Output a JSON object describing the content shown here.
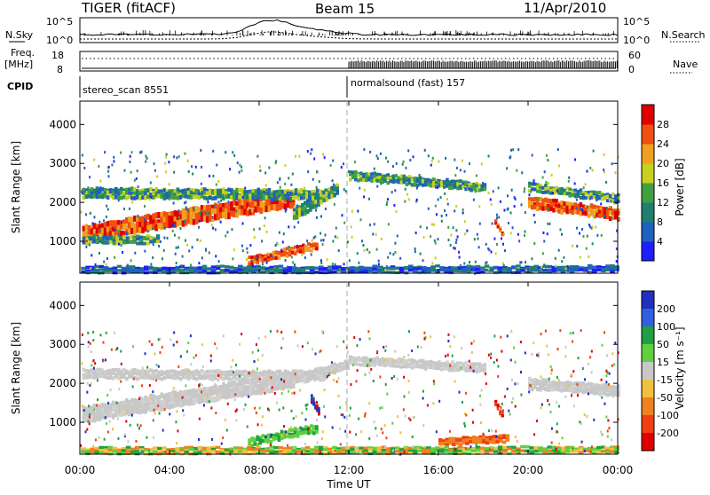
{
  "header": {
    "radar": "TIGER (fitACF)",
    "beam": "Beam 15",
    "date": "11/Apr/2010"
  },
  "top_panels": {
    "nsky_label": "N.Sky",
    "nsearch_label": "N.Search",
    "freq_label_top": "Freq.",
    "freq_label_unit": "[MHz]",
    "nave_label": "Nave",
    "cpid_label": "CPID",
    "noise_ticks_left": [
      "10^5",
      "10^0"
    ],
    "noise_ticks_right": [
      "10^5",
      "10^0"
    ],
    "freq_ticks": [
      "18",
      "8"
    ],
    "nave_ticks": [
      "60",
      "0"
    ],
    "cpid_segments": [
      {
        "label": "stereo_scan 8551",
        "start_hour": 0,
        "end_hour": 12
      },
      {
        "label": "normalsound (fast) 157",
        "start_hour": 12,
        "end_hour": 24
      }
    ]
  },
  "chart_data": [
    {
      "type": "heatmap",
      "quantity": "power",
      "ylabel": "Slant Range [km]",
      "ylim": [
        180,
        4600
      ],
      "yticks": [
        "1000",
        "2000",
        "3000",
        "4000"
      ],
      "colorbar_label": "Power [dB]",
      "colorbar_ticks": [
        "4",
        "8",
        "12",
        "16",
        "20",
        "24",
        "28"
      ],
      "colorbar_colors": [
        "#1e1eff",
        "#2060c0",
        "#208070",
        "#40a040",
        "#c8d020",
        "#f0a020",
        "#f05010",
        "#e00000"
      ]
    },
    {
      "type": "heatmap",
      "quantity": "velocity",
      "ylabel": "Slant Range [km]",
      "ylim": [
        180,
        4600
      ],
      "yticks": [
        "1000",
        "2000",
        "3000",
        "4000"
      ],
      "xlabel": "Time UT",
      "xticks": [
        "00:00",
        "04:00",
        "08:00",
        "12:00",
        "16:00",
        "20:00",
        "00:00"
      ],
      "colorbar_label": "Velocity [m s⁻¹]",
      "colorbar_ticks": [
        "200",
        "100",
        "50",
        "15",
        "-15",
        "-50",
        "-100",
        "-200"
      ],
      "colorbar_colors": [
        "#2030c0",
        "#3060e0",
        "#20a040",
        "#60d040",
        "#c8c8c8",
        "#f0c040",
        "#f08020",
        "#f04010",
        "#e00000"
      ]
    }
  ]
}
